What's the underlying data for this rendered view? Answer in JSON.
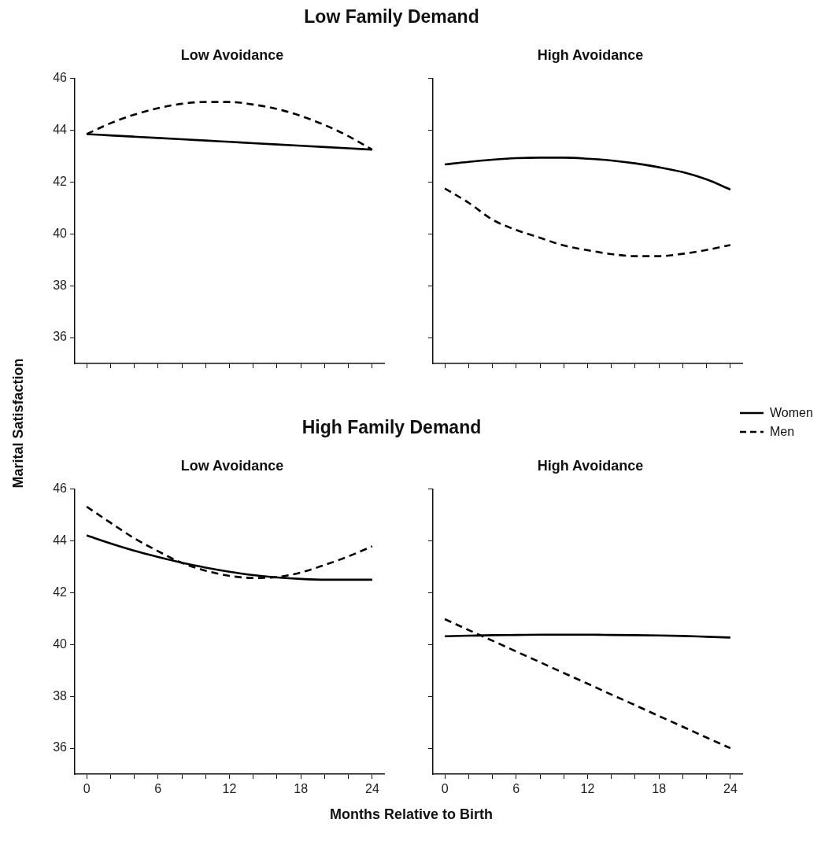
{
  "chart_data": [
    {
      "type": "line",
      "title": "Low Family Demand",
      "subtitle": "Low Avoidance",
      "ylabel": "Marital Satisfaction",
      "x": [
        0,
        2,
        4,
        6,
        8,
        10,
        12,
        14,
        16,
        18,
        20,
        22,
        24
      ],
      "xlim": [
        -1,
        25
      ],
      "ylim": [
        35,
        46
      ],
      "yticks": [
        36,
        38,
        40,
        42,
        44,
        46
      ],
      "xticks": [
        0,
        {
          "value": 2,
          "label": null
        },
        {
          "value": 4,
          "label": null
        },
        6,
        {
          "value": 8,
          "label": null
        },
        {
          "value": 10,
          "label": null
        },
        12,
        {
          "value": 14,
          "label": null
        },
        {
          "value": 16,
          "label": null
        },
        18,
        {
          "value": 20,
          "label": null
        },
        {
          "value": 22,
          "label": null
        },
        24
      ],
      "tick_labels": "y",
      "grid": false,
      "series": [
        {
          "color": "#000000",
          "line_style": "solid",
          "values": [
            43.85,
            43.8,
            43.75,
            43.7,
            43.65,
            43.6,
            43.55,
            43.5,
            43.45,
            43.4,
            43.35,
            43.3,
            43.25
          ]
        },
        {
          "color": "#000000",
          "line_style": "dashed",
          "values": [
            43.85,
            44.27,
            44.6,
            44.85,
            45.02,
            45.09,
            45.09,
            44.99,
            44.82,
            44.55,
            44.2,
            43.77,
            43.25
          ]
        }
      ]
    },
    {
      "type": "line",
      "subtitle": "High Avoidance",
      "x": [
        0,
        2,
        4,
        6,
        8,
        10,
        12,
        14,
        16,
        18,
        20,
        22,
        24
      ],
      "xlim": [
        -1,
        25
      ],
      "ylim": [
        35,
        46
      ],
      "yticks": [
        {
          "value": 36,
          "label": null
        },
        {
          "value": 38,
          "label": null
        },
        {
          "value": 40,
          "label": null
        },
        {
          "value": 42,
          "label": null
        },
        {
          "value": 44,
          "label": null
        },
        {
          "value": 46,
          "label": null
        }
      ],
      "xticks": [
        0,
        {
          "value": 2,
          "label": null
        },
        {
          "value": 4,
          "label": null
        },
        6,
        {
          "value": 8,
          "label": null
        },
        {
          "value": 10,
          "label": null
        },
        12,
        {
          "value": 14,
          "label": null
        },
        {
          "value": 16,
          "label": null
        },
        18,
        {
          "value": 20,
          "label": null
        },
        {
          "value": 22,
          "label": null
        },
        24
      ],
      "tick_labels": false,
      "grid": false,
      "legend": "right",
      "series": [
        {
          "name": "Women",
          "color": "#000000",
          "line_style": "solid",
          "values": [
            42.68,
            42.78,
            42.86,
            42.92,
            42.94,
            42.94,
            42.9,
            42.83,
            42.72,
            42.57,
            42.38,
            42.1,
            41.71
          ]
        },
        {
          "name": "Men",
          "color": "#000000",
          "line_style": "dashed",
          "values": [
            41.75,
            41.2,
            40.55,
            40.15,
            39.85,
            39.55,
            39.37,
            39.22,
            39.14,
            39.14,
            39.23,
            39.38,
            39.57
          ]
        }
      ]
    },
    {
      "type": "line",
      "title": "High Family Demand",
      "subtitle": "Low Avoidance",
      "xlabel": "Months Relative to Birth",
      "x": [
        0,
        2,
        4,
        6,
        8,
        10,
        12,
        14,
        16,
        18,
        20,
        22,
        24
      ],
      "xlim": [
        -1,
        25
      ],
      "ylim": [
        35,
        46
      ],
      "yticks": [
        36,
        38,
        40,
        42,
        44,
        46
      ],
      "xticks": [
        0,
        {
          "value": 2,
          "label": null
        },
        {
          "value": 4,
          "label": null
        },
        6,
        {
          "value": 8,
          "label": null
        },
        {
          "value": 10,
          "label": null
        },
        12,
        {
          "value": 14,
          "label": null
        },
        {
          "value": 16,
          "label": null
        },
        18,
        {
          "value": 20,
          "label": null
        },
        {
          "value": 22,
          "label": null
        },
        24
      ],
      "grid": false,
      "series": [
        {
          "color": "#000000",
          "line_style": "solid",
          "values": [
            44.21,
            43.9,
            43.62,
            43.38,
            43.16,
            42.97,
            42.81,
            42.68,
            42.59,
            42.53,
            42.5,
            42.5,
            42.5
          ]
        },
        {
          "color": "#000000",
          "line_style": "dashed",
          "values": [
            45.32,
            44.7,
            44.1,
            43.6,
            43.15,
            42.85,
            42.65,
            42.57,
            42.6,
            42.78,
            43.07,
            43.4,
            43.79
          ]
        }
      ]
    },
    {
      "type": "line",
      "subtitle": "High Avoidance",
      "x": [
        0,
        2,
        4,
        6,
        8,
        10,
        12,
        14,
        16,
        18,
        20,
        22,
        24
      ],
      "xlim": [
        -1,
        25
      ],
      "ylim": [
        35,
        46
      ],
      "yticks": [
        {
          "value": 36,
          "label": null
        },
        {
          "value": 38,
          "label": null
        },
        {
          "value": 40,
          "label": null
        },
        {
          "value": 42,
          "label": null
        },
        {
          "value": 44,
          "label": null
        },
        {
          "value": 46,
          "label": null
        }
      ],
      "xticks": [
        0,
        {
          "value": 2,
          "label": null
        },
        {
          "value": 4,
          "label": null
        },
        6,
        {
          "value": 8,
          "label": null
        },
        {
          "value": 10,
          "label": null
        },
        12,
        {
          "value": 14,
          "label": null
        },
        {
          "value": 16,
          "label": null
        },
        18,
        {
          "value": 20,
          "label": null
        },
        {
          "value": 22,
          "label": null
        },
        24
      ],
      "tick_labels": "x",
      "grid": false,
      "series": [
        {
          "color": "#000000",
          "line_style": "solid",
          "values": [
            40.32,
            40.34,
            40.36,
            40.37,
            40.38,
            40.38,
            40.38,
            40.37,
            40.36,
            40.35,
            40.33,
            40.3,
            40.27
          ]
        },
        {
          "color": "#000000",
          "line_style": "dashed",
          "values": [
            40.98,
            40.56,
            40.15,
            39.73,
            39.32,
            38.9,
            38.49,
            38.07,
            37.66,
            37.24,
            36.83,
            36.41,
            36.0
          ]
        }
      ]
    }
  ]
}
